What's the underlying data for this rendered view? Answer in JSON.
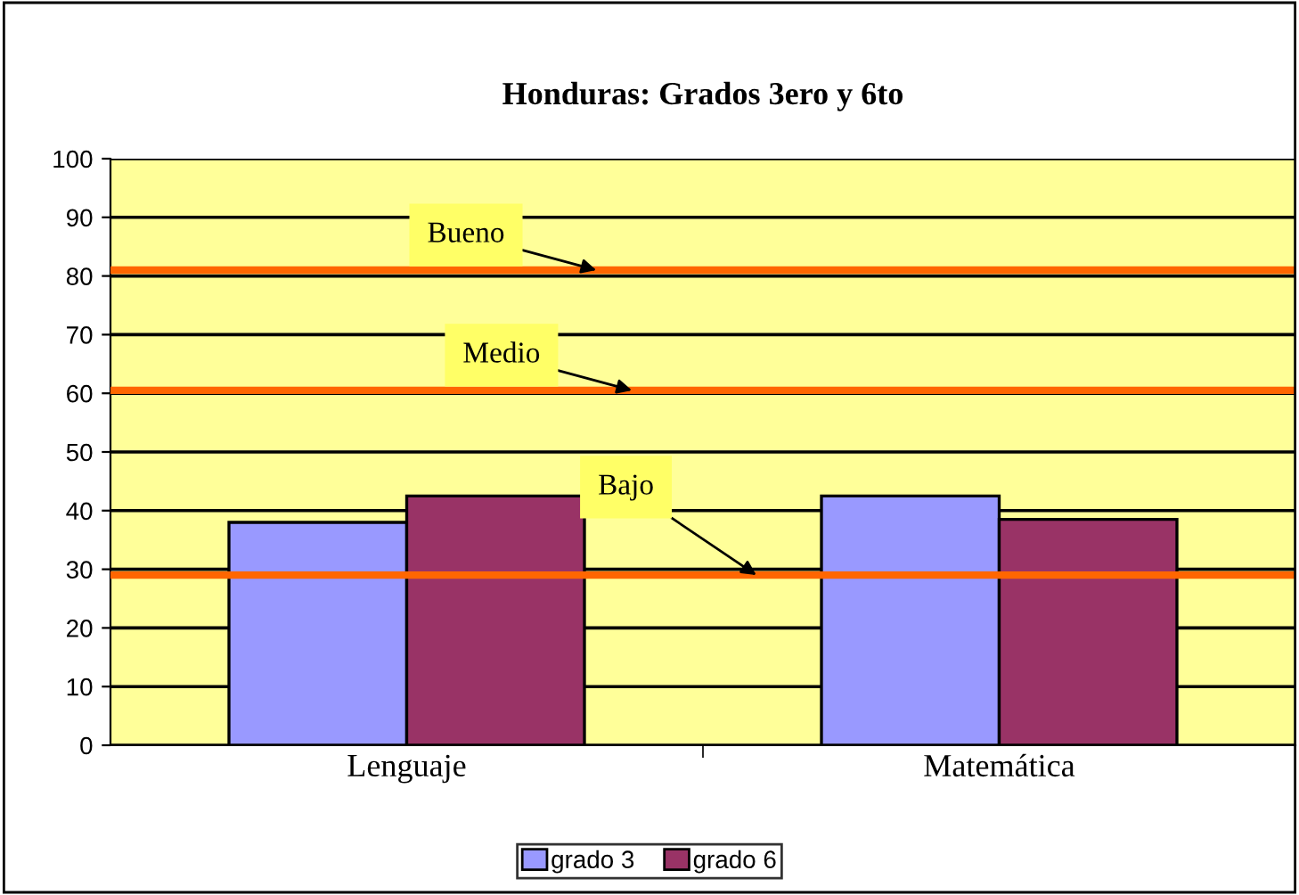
{
  "chart_data": {
    "type": "bar",
    "title": "Honduras: Grados 3ero y 6to",
    "categories": [
      "Lenguaje",
      "Matemática"
    ],
    "series": [
      {
        "name": "grado 3",
        "color": "#9999ff",
        "values": [
          38,
          42.5
        ]
      },
      {
        "name": "grado 6",
        "color": "#993366",
        "values": [
          42.5,
          38.5
        ]
      }
    ],
    "ylim": [
      0,
      100
    ],
    "yticks": [
      0,
      10,
      20,
      30,
      40,
      50,
      60,
      70,
      80,
      90,
      100
    ],
    "grid": "y",
    "legend": "bottom",
    "ref_lines": [
      {
        "axis": "y",
        "value": 81,
        "label": "Bueno",
        "color": "#ff6600"
      },
      {
        "axis": "y",
        "value": 60.5,
        "label": "Medio",
        "color": "#ff6600"
      },
      {
        "axis": "y",
        "value": 29,
        "label": "Bajo",
        "color": "#ff6600"
      }
    ]
  }
}
